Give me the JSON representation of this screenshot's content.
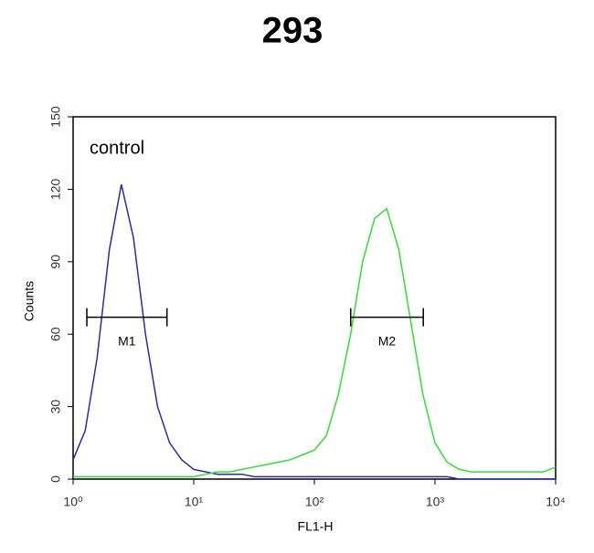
{
  "chart_data": {
    "type": "line",
    "title": "293",
    "annotation": "control",
    "xlabel": "FL1-H",
    "ylabel": "Counts",
    "xscale": "log",
    "xlim": [
      1,
      10000
    ],
    "xticks": [
      {
        "value": 1,
        "label": "10⁰"
      },
      {
        "value": 10,
        "label": "10¹"
      },
      {
        "value": 100,
        "label": "10²"
      },
      {
        "value": 1000,
        "label": "10³"
      },
      {
        "value": 10000,
        "label": "10⁴"
      }
    ],
    "ylim": [
      0,
      150
    ],
    "yticks": [
      0,
      30,
      60,
      90,
      120,
      150
    ],
    "x": [
      1,
      1.26,
      1.58,
      2.0,
      2.51,
      3.16,
      3.98,
      5.01,
      6.31,
      7.94,
      10,
      12.6,
      15.8,
      20,
      25.1,
      31.6,
      39.8,
      50.1,
      63.1,
      79.4,
      100,
      126,
      158,
      200,
      251,
      316,
      398,
      501,
      631,
      794,
      1000,
      1259,
      1585,
      1995,
      2512,
      3162,
      3981,
      5012,
      6310,
      7943,
      10000
    ],
    "series": [
      {
        "name": "control",
        "color": "#2b2ba8",
        "values": [
          8,
          20,
          50,
          95,
          122,
          100,
          60,
          30,
          15,
          8,
          4,
          3,
          2,
          2,
          2,
          1,
          1,
          1,
          1,
          1,
          1,
          1,
          1,
          1,
          1,
          1,
          1,
          1,
          1,
          1,
          1,
          1,
          0,
          0,
          0,
          0,
          0,
          0,
          0,
          0,
          0
        ]
      },
      {
        "name": "293",
        "color": "#33dd33",
        "values": [
          1,
          1,
          1,
          1,
          1,
          1,
          1,
          1,
          1,
          1,
          1,
          2,
          3,
          3,
          4,
          5,
          6,
          7,
          8,
          10,
          12,
          18,
          35,
          60,
          90,
          108,
          112,
          95,
          65,
          35,
          15,
          7,
          4,
          3,
          3,
          3,
          3,
          3,
          3,
          3,
          5
        ]
      }
    ],
    "markers": [
      {
        "label": "M1",
        "range": [
          1.3,
          6
        ],
        "y": 67
      },
      {
        "label": "M2",
        "range": [
          200,
          800
        ],
        "y": 67
      }
    ]
  }
}
